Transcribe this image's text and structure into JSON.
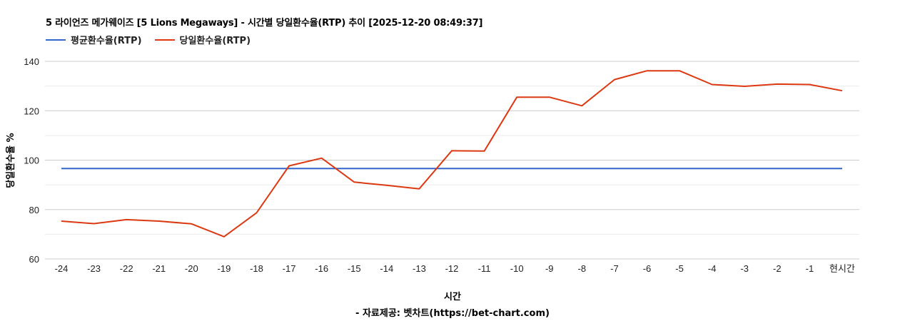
{
  "chart_data": {
    "type": "line",
    "title": "5 라이언즈 메가웨이즈 [5 Lions Megaways] - 시간별 당일환수율(RTP) 추이 [2025-12-20 08:49:37]",
    "xlabel": "시간",
    "ylabel": "당일환수율 %",
    "credit": "- 자료제공: 벳차트(https://bet-chart.com)",
    "ylim": [
      60,
      140
    ],
    "yticks": [
      60,
      80,
      100,
      120,
      140
    ],
    "grid": true,
    "legend_position": "top",
    "categories": [
      "-24",
      "-23",
      "-22",
      "-21",
      "-20",
      "-19",
      "-18",
      "-17",
      "-16",
      "-15",
      "-14",
      "-13",
      "-12",
      "-11",
      "-10",
      "-9",
      "-8",
      "-7",
      "-6",
      "-5",
      "-4",
      "-3",
      "-2",
      "-1",
      "현시간"
    ],
    "series": [
      {
        "name": "평균환수율(RTP)",
        "color": "#3366cc",
        "values": [
          96.6,
          96.6,
          96.6,
          96.6,
          96.6,
          96.6,
          96.6,
          96.6,
          96.6,
          96.6,
          96.6,
          96.6,
          96.6,
          96.6,
          96.6,
          96.6,
          96.6,
          96.6,
          96.6,
          96.6,
          96.6,
          96.6,
          96.6,
          96.6,
          96.6
        ]
      },
      {
        "name": "당일환수율(RTP)",
        "color": "#dc3912",
        "values": [
          75.3,
          74.3,
          75.9,
          75.3,
          74.2,
          69.0,
          78.7,
          97.7,
          100.8,
          91.1,
          89.8,
          88.4,
          103.8,
          103.7,
          125.5,
          125.5,
          122.0,
          132.6,
          136.2,
          136.2,
          130.6,
          129.9,
          130.8,
          130.6,
          128.1
        ]
      }
    ]
  }
}
